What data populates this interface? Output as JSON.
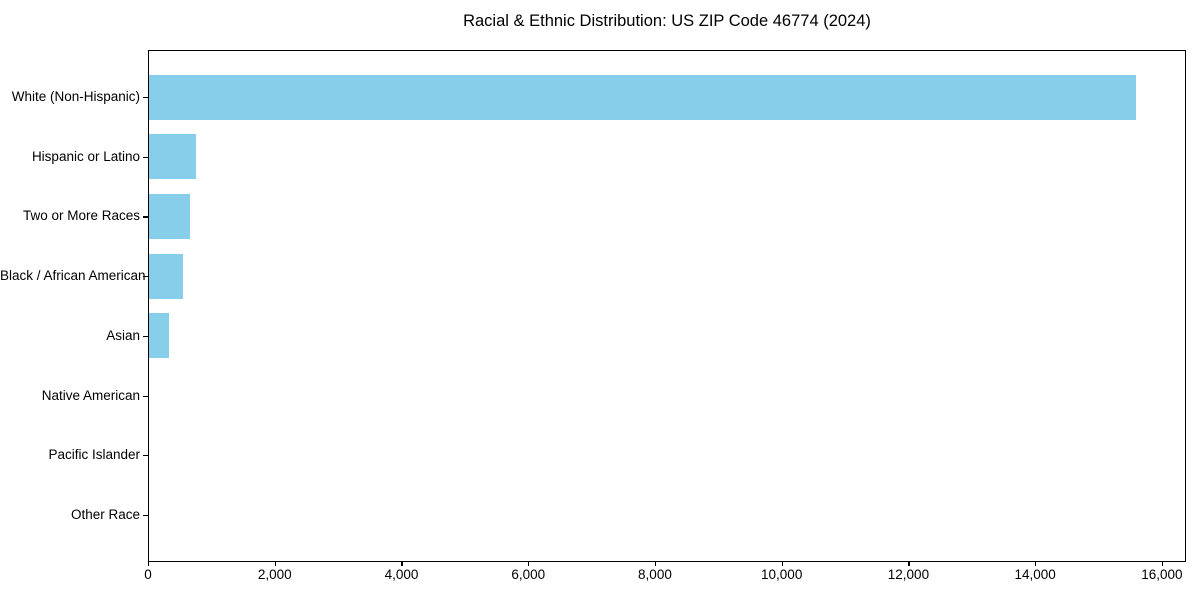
{
  "chart_data": {
    "type": "bar",
    "orientation": "horizontal",
    "title": "Racial & Ethnic Distribution: US ZIP Code 46774 (2024)",
    "categories": [
      "White (Non-Hispanic)",
      "Hispanic or Latino",
      "Two or More Races",
      "Black / African American",
      "Asian",
      "Native American",
      "Pacific Islander",
      "Other Race"
    ],
    "values": [
      15600,
      740,
      650,
      540,
      320,
      0,
      0,
      0
    ],
    "xlabel": "",
    "ylabel": "",
    "xlim": [
      0,
      16380
    ],
    "xticks": [
      0,
      2000,
      4000,
      6000,
      8000,
      10000,
      12000,
      14000,
      16000
    ],
    "xtick_labels": [
      "0",
      "2,000",
      "4,000",
      "6,000",
      "8,000",
      "10,000",
      "12,000",
      "14,000",
      "16,000"
    ],
    "bar_color": "#87CEEB",
    "axis_color": "#000000",
    "text_color": "#000000",
    "background_color": "#ffffff",
    "grid": false,
    "legend": null
  }
}
